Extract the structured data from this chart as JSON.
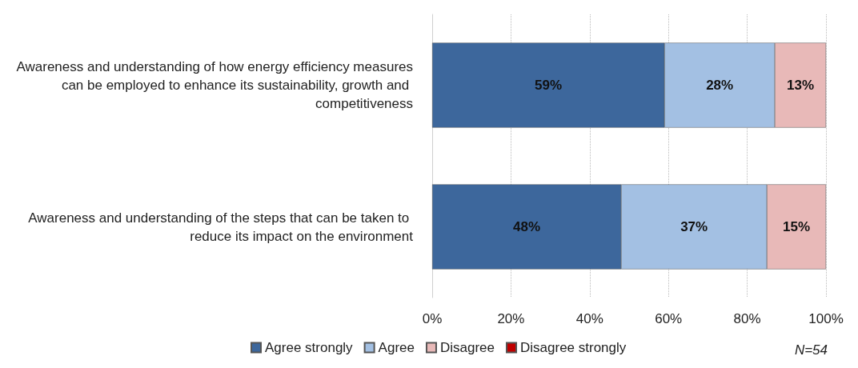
{
  "chart_data": {
    "type": "bar",
    "orientation": "horizontal",
    "stacked": true,
    "categories": [
      "Awareness and understanding of how energy efficiency measures can be employed to enhance its sustainability, growth and competitiveness",
      "Awareness and understanding of the steps that can be taken to reduce its impact on the environment"
    ],
    "series": [
      {
        "name": "Agree strongly",
        "color": "#3d679c",
        "values": [
          59,
          48
        ],
        "value_labels": [
          "59%",
          "48%"
        ]
      },
      {
        "name": "Agree",
        "color": "#a3c0e3",
        "values": [
          28,
          37
        ],
        "value_labels": [
          "28%",
          "37%"
        ]
      },
      {
        "name": "Disagree",
        "color": "#e8b9b8",
        "values": [
          13,
          15
        ],
        "value_labels": [
          "13%",
          "15%"
        ]
      },
      {
        "name": "Disagree strongly",
        "color": "#c00000",
        "values": [
          null,
          null
        ]
      }
    ],
    "xlim": [
      0,
      100
    ],
    "xticks": [
      {
        "value": 0,
        "label": "0%"
      },
      {
        "value": 20,
        "label": "20%"
      },
      {
        "value": 40,
        "label": "40%"
      },
      {
        "value": 60,
        "label": "60%"
      },
      {
        "value": 80,
        "label": "80%"
      },
      {
        "value": 100,
        "label": "100%"
      }
    ],
    "grid": "x",
    "legend": "bottom",
    "annotations": [
      "N=54"
    ]
  }
}
